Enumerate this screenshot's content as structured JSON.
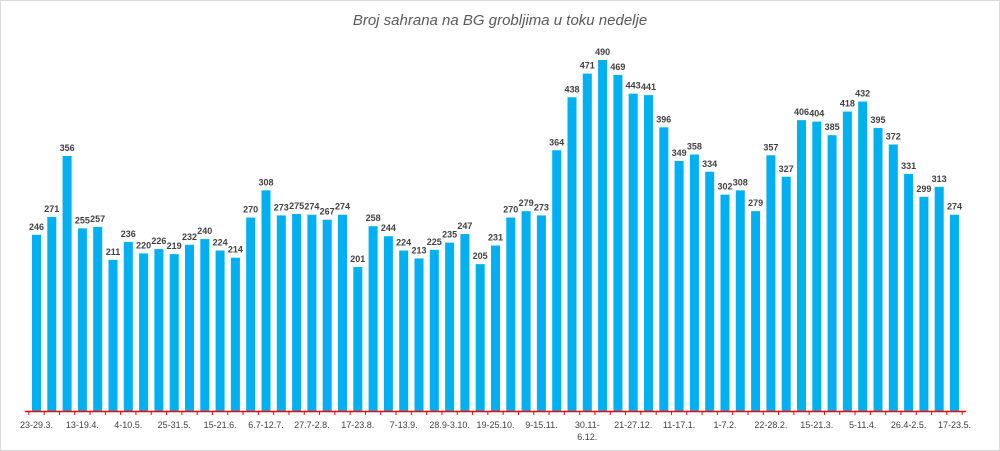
{
  "chart_data": {
    "type": "bar",
    "title": "Broj sahrana na BG grobljima u toku nedelje",
    "xlabel": "",
    "ylabel": "",
    "ylim": [
      0,
      500
    ],
    "grid": false,
    "legend": "none",
    "bar_color": "#00B0F0",
    "axis_color": "#FF0000",
    "values": [
      246,
      271,
      356,
      255,
      257,
      211,
      236,
      220,
      226,
      219,
      232,
      240,
      224,
      214,
      270,
      308,
      273,
      275,
      274,
      267,
      274,
      201,
      258,
      244,
      224,
      213,
      225,
      235,
      247,
      205,
      231,
      270,
      279,
      273,
      364,
      438,
      471,
      490,
      469,
      443,
      441,
      396,
      349,
      358,
      334,
      302,
      308,
      279,
      357,
      327,
      406,
      404,
      385,
      418,
      432,
      395,
      372,
      331,
      299,
      313,
      274
    ],
    "tick_labels": [
      {
        "index": 0,
        "text": "23-29.3."
      },
      {
        "index": 3,
        "text": "13-19.4."
      },
      {
        "index": 6,
        "text": "4-10.5."
      },
      {
        "index": 9,
        "text": "25-31.5."
      },
      {
        "index": 12,
        "text": "15-21.6."
      },
      {
        "index": 15,
        "text": "6.7-12.7."
      },
      {
        "index": 18,
        "text": "27.7-2.8."
      },
      {
        "index": 21,
        "text": "17-23.8."
      },
      {
        "index": 24,
        "text": "7-13.9."
      },
      {
        "index": 27,
        "text": "28.9-3.10."
      },
      {
        "index": 30,
        "text": "19-25.10."
      },
      {
        "index": 33,
        "text": "9-15.11."
      },
      {
        "index": 36,
        "text": "30.11-",
        "text2": "6.12."
      },
      {
        "index": 39,
        "text": "21-27.12."
      },
      {
        "index": 42,
        "text": "11-17.1."
      },
      {
        "index": 45,
        "text": "1-7.2."
      },
      {
        "index": 48,
        "text": "22-28.2."
      },
      {
        "index": 51,
        "text": "15-21.3."
      },
      {
        "index": 54,
        "text": "5-11.4."
      },
      {
        "index": 57,
        "text": "26.4-2.5."
      },
      {
        "index": 60,
        "text": "17-23.5."
      }
    ]
  }
}
